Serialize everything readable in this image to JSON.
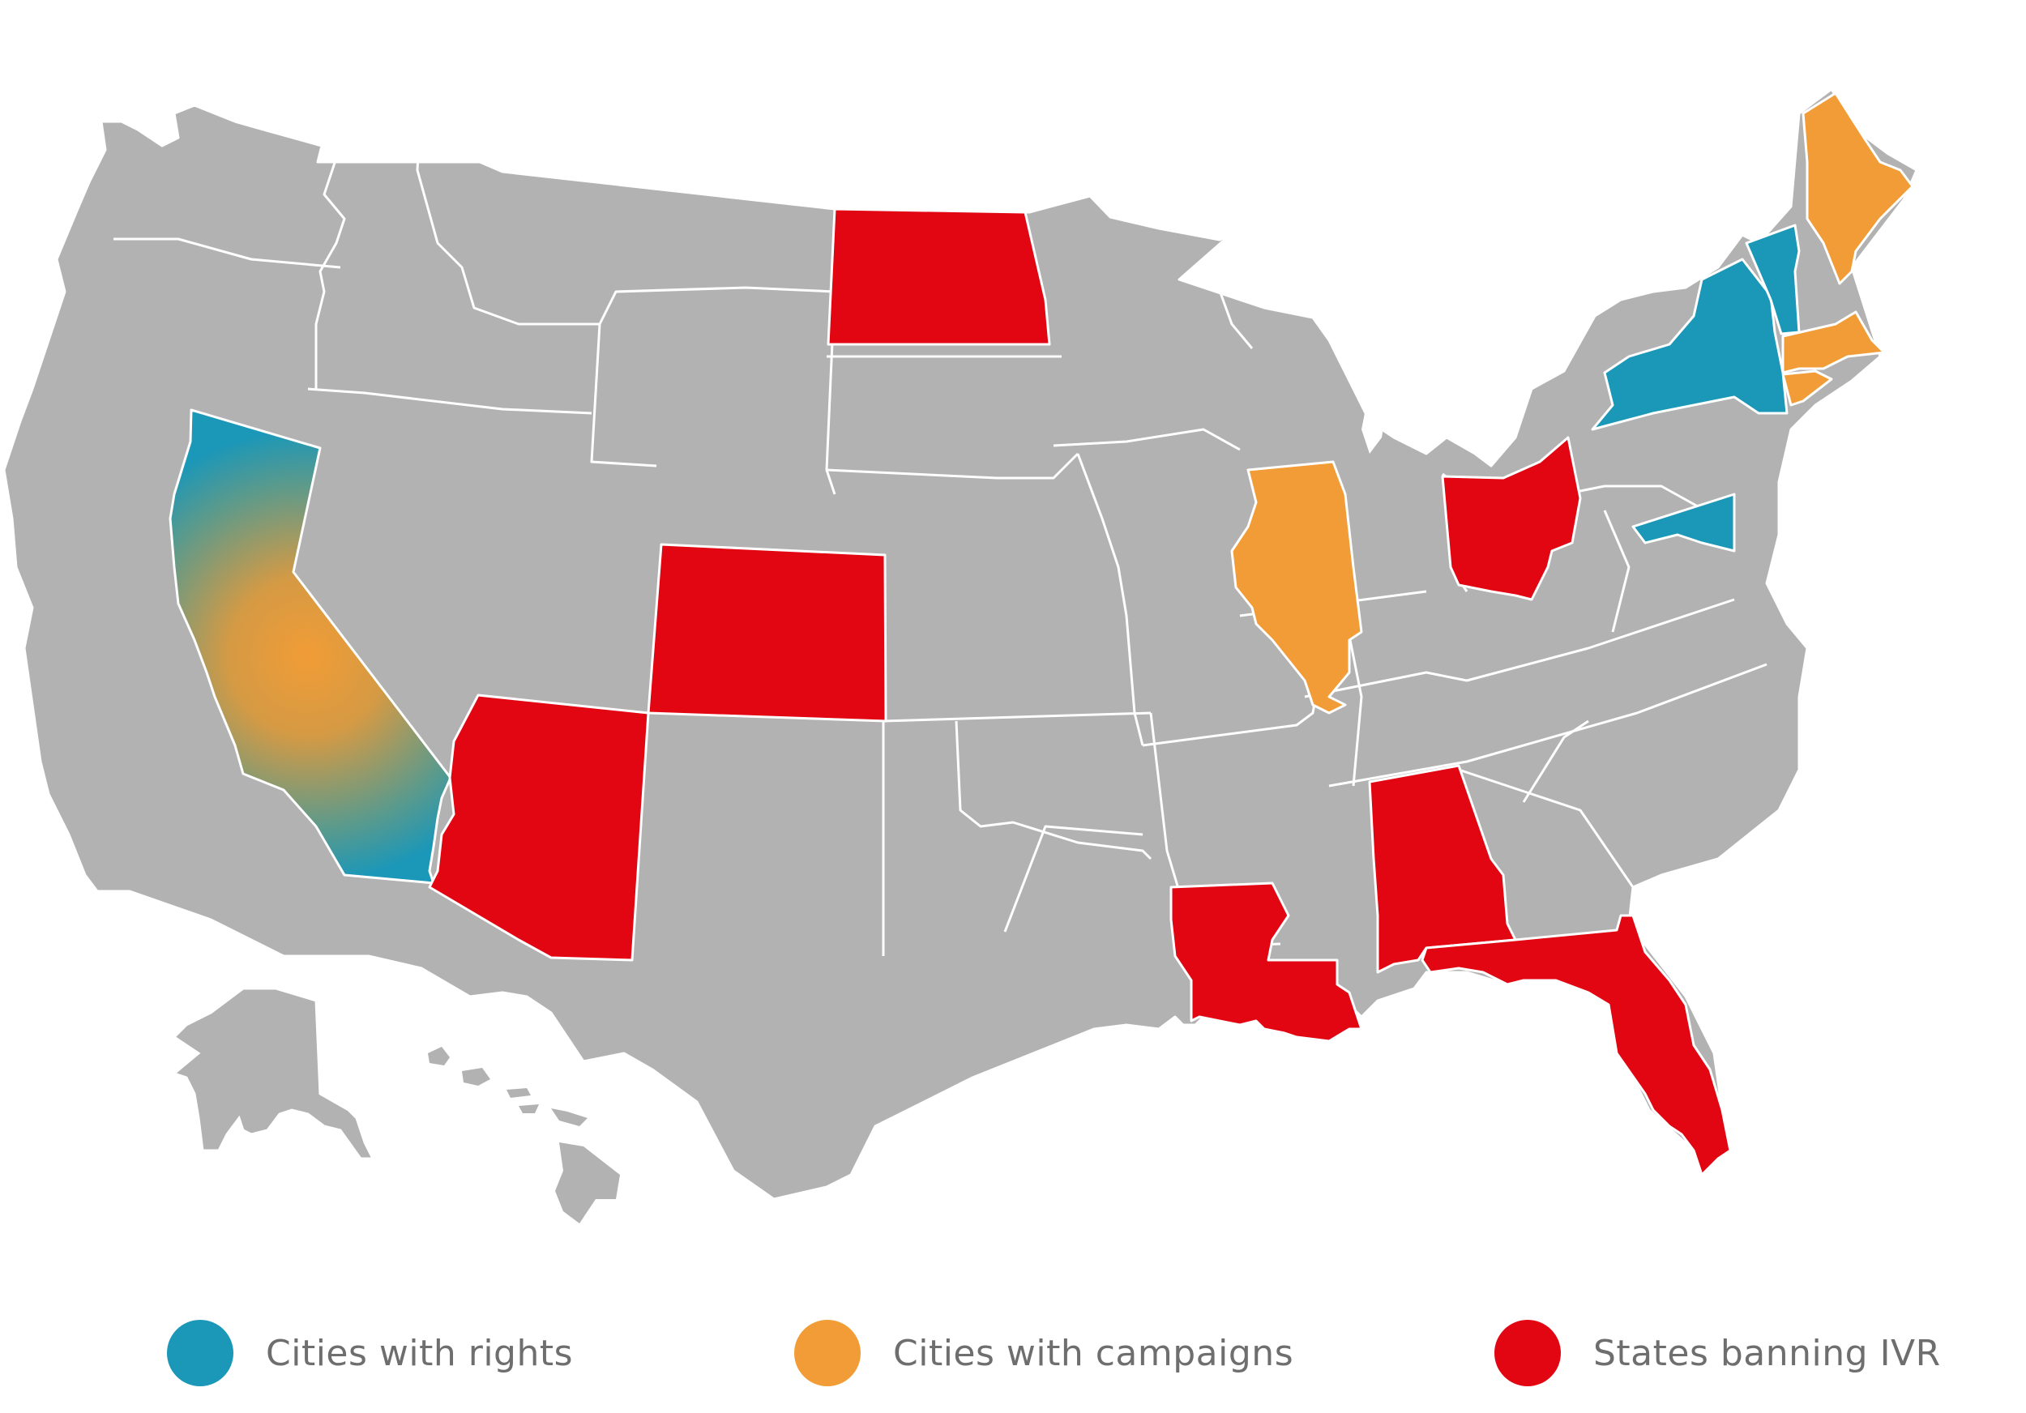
{
  "colors": {
    "base": "#b2b2b2",
    "border": "#ffffff",
    "rights": "#1b97b8",
    "campaigns": "#f19c36",
    "ban": "#e20613"
  },
  "legend": [
    {
      "key": "rights",
      "label": "Cities with rights",
      "color": "#1b97b8"
    },
    {
      "key": "campaigns",
      "label": "Cities with campaigns",
      "color": "#f19c36"
    },
    {
      "key": "ban",
      "label": "States banning IVR",
      "color": "#e20613"
    }
  ],
  "states": {
    "rights": [
      "California",
      "New York",
      "Vermont",
      "Maryland"
    ],
    "campaigns": [
      "California",
      "Illinois",
      "Maine",
      "Massachusetts",
      "Connecticut"
    ],
    "ban": [
      "North Dakota",
      "Colorado",
      "Arizona",
      "Ohio",
      "Louisiana",
      "Alabama",
      "Florida"
    ]
  }
}
